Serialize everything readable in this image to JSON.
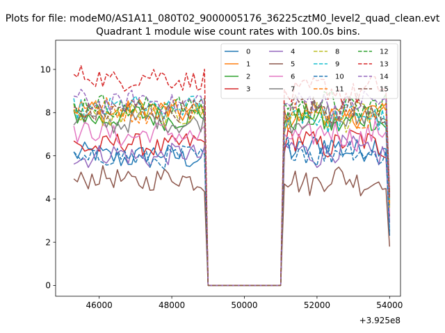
{
  "figure": {
    "suptitle": "Plots for file: modeM0/AS1A11_080T02_9000005176_36225cztM0_level2_quad_clean.evt",
    "title": "Quadrant 1 module wise count rates with 100.0s bins.",
    "offset_text": "+3.925e8"
  },
  "chart_data": {
    "type": "line",
    "title": "Quadrant 1 module wise count rates with 100.0s bins.",
    "xlabel": "",
    "ylabel": "",
    "xlim": [
      44800,
      54300
    ],
    "ylim": [
      -0.5,
      11.35
    ],
    "x_offset": 392500000,
    "xticks": [
      46000,
      48000,
      50000,
      52000,
      54000
    ],
    "xtick_labels": [
      "46000",
      "48000",
      "50000",
      "52000",
      "54000"
    ],
    "yticks": [
      0,
      2,
      4,
      6,
      8,
      10
    ],
    "ytick_labels": [
      "0",
      "2",
      "4",
      "6",
      "8",
      "10"
    ],
    "grid": false,
    "legend_position": "top-right",
    "legend_columns": 4,
    "segments": [
      {
        "x_start": 45300,
        "x_end": 48900,
        "bin": 100
      },
      {
        "x_start": 51000,
        "x_end": 54000,
        "bin": 100
      }
    ],
    "gap": {
      "x": [
        49000,
        51000
      ],
      "value": 0
    },
    "series": [
      {
        "name": "0",
        "color": "#1f77b4",
        "dash": "solid",
        "level1": 6.0,
        "level2": 6.4,
        "end": 2.3
      },
      {
        "name": "1",
        "color": "#ff7f0e",
        "dash": "solid",
        "level1": 8.1,
        "level2": 7.9,
        "end": 4.0
      },
      {
        "name": "2",
        "color": "#2ca02c",
        "dash": "solid",
        "level1": 7.8,
        "level2": 7.6,
        "end": 3.8
      },
      {
        "name": "3",
        "color": "#d62728",
        "dash": "solid",
        "level1": 6.5,
        "level2": 6.6,
        "end": 3.2
      },
      {
        "name": "4",
        "color": "#9467bd",
        "dash": "solid",
        "level1": 6.0,
        "level2": 6.2,
        "end": 2.9
      },
      {
        "name": "5",
        "color": "#8c564b",
        "dash": "solid",
        "level1": 4.9,
        "level2": 4.9,
        "end": 1.8
      },
      {
        "name": "6",
        "color": "#e377c2",
        "dash": "solid",
        "level1": 7.0,
        "level2": 7.0,
        "end": 3.3
      },
      {
        "name": "7",
        "color": "#7f7f7f",
        "dash": "solid",
        "level1": 7.6,
        "level2": 7.8,
        "end": 3.7
      },
      {
        "name": "8",
        "color": "#bcbd22",
        "dash": "dashed",
        "level1": 7.9,
        "level2": 7.8,
        "end": 3.6
      },
      {
        "name": "9",
        "color": "#17becf",
        "dash": "dashed",
        "level1": 8.2,
        "level2": 7.8,
        "end": 3.9
      },
      {
        "name": "10",
        "color": "#1f77b4",
        "dash": "dashed",
        "level1": 5.9,
        "level2": 6.2,
        "end": 2.5
      },
      {
        "name": "11",
        "color": "#ff7f0e",
        "dash": "dashed",
        "level1": 8.1,
        "level2": 8.0,
        "end": 3.8
      },
      {
        "name": "12",
        "color": "#2ca02c",
        "dash": "dashed",
        "level1": 8.3,
        "level2": 8.3,
        "end": 4.2
      },
      {
        "name": "13",
        "color": "#d62728",
        "dash": "dashed",
        "level1": 9.6,
        "level2": 9.0,
        "end": 4.3
      },
      {
        "name": "14",
        "color": "#9467bd",
        "dash": "dashed",
        "level1": 8.5,
        "level2": 8.4,
        "end": 4.1
      },
      {
        "name": "15",
        "color": "#8c564b",
        "dash": "dashed",
        "level1": 8.1,
        "level2": 8.2,
        "end": 4.0
      }
    ]
  }
}
